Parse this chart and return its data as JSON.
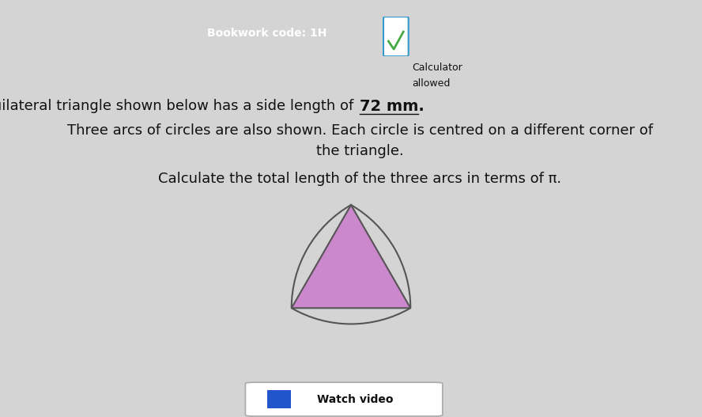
{
  "bg_color": "#d4d4d4",
  "bookwork_label": "Bookwork code: 1H",
  "bookwork_bg": "#1e3a5f",
  "bookwork_text_color": "#ffffff",
  "calc_label": "Calculator",
  "allowed_label": "allowed",
  "title_line1a": "The equilateral triangle shown below has a side length of ",
  "title_bold": "72 mm",
  "title_line2": "Three arcs of circles are also shown. Each circle is centred on a different corner of",
  "title_line3": "the triangle.",
  "question": "Calculate the total length of the three arcs in terms of π.",
  "triangle_fill": "#cc88cc",
  "triangle_edge": "#555555",
  "arc_color": "#555555",
  "watch_video_label": "Watch video",
  "font_size_main": 13,
  "font_size_question": 13
}
